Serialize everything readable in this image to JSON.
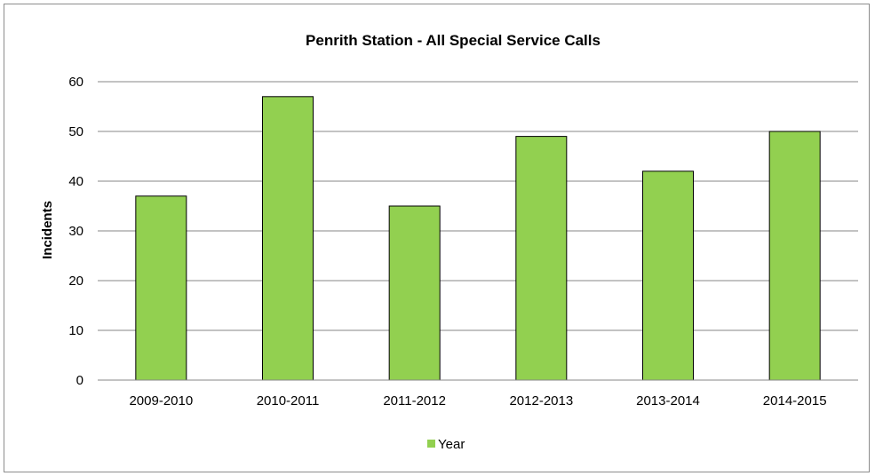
{
  "chart_data": {
    "type": "bar",
    "title": "Penrith Station - All Special Service Calls",
    "xlabel": "",
    "ylabel": "Incidents",
    "categories": [
      "2009-2010",
      "2010-2011",
      "2011-2012",
      "2012-2013",
      "2013-2014",
      "2014-2015"
    ],
    "series": [
      {
        "name": "Year",
        "values": [
          37,
          57,
          35,
          49,
          42,
          50
        ],
        "color": "#92d050"
      }
    ],
    "ylim": [
      0,
      60
    ],
    "yticks": [
      "0",
      "10",
      "20",
      "30",
      "40",
      "50",
      "60"
    ],
    "grid": true,
    "legend": "bottom"
  }
}
